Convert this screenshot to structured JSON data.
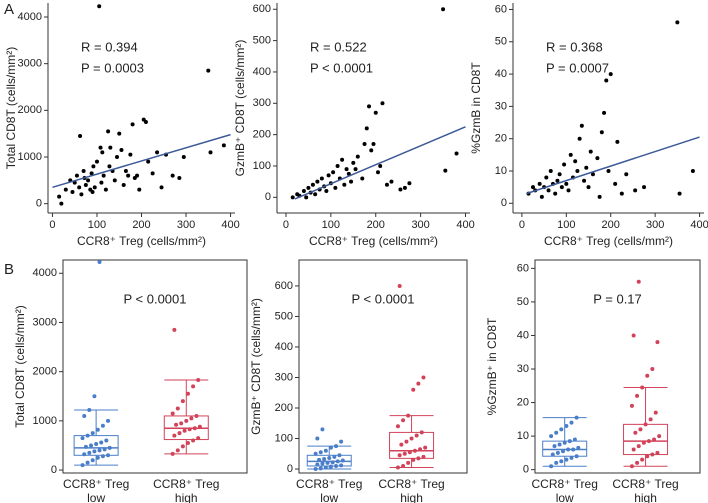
{
  "panel_labels": [
    "A",
    "B"
  ],
  "chart_data": [
    {
      "type": "scatter",
      "xlabel": "CCR8⁺ Treg (cells/mm²)",
      "ylabel": "Total CD8T (cells/mm²)",
      "annotations": [
        "R = 0.394",
        "P = 0.0003"
      ],
      "xlim": [
        -10,
        410
      ],
      "ylim": [
        -200,
        4300
      ],
      "xticks": [
        0,
        100,
        200,
        300,
        400
      ],
      "yticks": [
        0,
        1000,
        2000,
        3000,
        4000
      ],
      "color": "#000000",
      "trend": {
        "color": "#3d5a98",
        "x": [
          0,
          400
        ],
        "y": [
          350,
          1480
        ]
      },
      "x": [
        15,
        20,
        30,
        40,
        45,
        50,
        55,
        60,
        62,
        65,
        70,
        72,
        75,
        80,
        85,
        88,
        90,
        92,
        95,
        100,
        105,
        108,
        110,
        112,
        115,
        120,
        125,
        128,
        130,
        135,
        140,
        145,
        150,
        155,
        160,
        165,
        170,
        175,
        180,
        185,
        190,
        195,
        205,
        210,
        215,
        225,
        235,
        245,
        255,
        270,
        285,
        295,
        350,
        355,
        385
      ],
      "y": [
        150,
        0,
        300,
        500,
        250,
        450,
        600,
        350,
        1450,
        200,
        700,
        550,
        400,
        500,
        300,
        650,
        250,
        800,
        350,
        900,
        4230,
        1200,
        450,
        1100,
        600,
        300,
        1550,
        800,
        1200,
        700,
        500,
        1000,
        1500,
        1150,
        400,
        700,
        600,
        1050,
        1700,
        550,
        600,
        300,
        1800,
        1750,
        900,
        650,
        1100,
        350,
        1050,
        600,
        550,
        1000,
        2850,
        1100,
        1250
      ]
    },
    {
      "type": "scatter",
      "xlabel": "CCR8⁺ Treg (cells/mm²)",
      "ylabel": "GzmB⁺ CD8T (cells/mm²)",
      "annotations": [
        "R = 0.522",
        "P < 0.0001"
      ],
      "xlim": [
        -20,
        410
      ],
      "ylim": [
        -50,
        620
      ],
      "xticks": [
        0,
        100,
        200,
        300,
        400
      ],
      "yticks": [
        0,
        100,
        200,
        300,
        400,
        500,
        600
      ],
      "color": "#000000",
      "trend": {
        "color": "#3d5a98",
        "x": [
          20,
          400
        ],
        "y": [
          -5,
          225
        ]
      },
      "x": [
        15,
        25,
        30,
        40,
        45,
        50,
        55,
        60,
        65,
        70,
        75,
        80,
        85,
        90,
        95,
        100,
        105,
        110,
        115,
        120,
        125,
        130,
        135,
        140,
        145,
        150,
        155,
        160,
        170,
        175,
        180,
        185,
        190,
        195,
        200,
        205,
        210,
        215,
        225,
        235,
        255,
        265,
        275,
        350,
        355,
        380
      ],
      "y": [
        0,
        10,
        5,
        20,
        0,
        30,
        15,
        40,
        10,
        50,
        25,
        60,
        35,
        20,
        70,
        45,
        80,
        30,
        100,
        60,
        120,
        40,
        90,
        75,
        50,
        110,
        90,
        130,
        60,
        170,
        220,
        290,
        150,
        170,
        270,
        80,
        100,
        300,
        40,
        50,
        25,
        30,
        45,
        600,
        85,
        140
      ]
    },
    {
      "type": "scatter",
      "xlabel": "CCR8⁺ Treg (cells/mm²)",
      "ylabel": "%GzmB in CD8T",
      "annotations": [
        "R = 0.368",
        "P = 0.0007"
      ],
      "xlim": [
        -20,
        410
      ],
      "ylim": [
        -3,
        62
      ],
      "xticks": [
        0,
        100,
        200,
        300,
        400
      ],
      "yticks": [
        0,
        10,
        20,
        30,
        40,
        50,
        60
      ],
      "color": "#000000",
      "trend": {
        "color": "#3d5a98",
        "x": [
          10,
          400
        ],
        "y": [
          3,
          20.5
        ]
      },
      "x": [
        15,
        25,
        30,
        40,
        45,
        50,
        55,
        60,
        65,
        70,
        75,
        80,
        85,
        90,
        95,
        100,
        105,
        110,
        115,
        120,
        125,
        130,
        135,
        140,
        145,
        150,
        155,
        160,
        170,
        175,
        180,
        185,
        190,
        195,
        200,
        210,
        215,
        225,
        235,
        255,
        275,
        350,
        355,
        385
      ],
      "y": [
        3,
        5,
        4,
        6,
        2,
        5,
        8,
        4,
        10,
        6,
        3,
        7,
        9,
        5,
        12,
        6,
        4,
        15,
        8,
        13,
        10,
        20,
        24,
        7,
        11,
        5,
        16,
        9,
        14,
        2,
        22,
        28,
        38,
        10,
        40,
        6,
        19,
        3,
        9,
        4,
        5,
        56,
        3,
        10
      ]
    },
    {
      "type": "box",
      "ylabel": "Total CD8T (cells/mm²)",
      "annotations": [
        "P < 0.0001"
      ],
      "ylim": [
        -60,
        4270
      ],
      "yticks": [
        0,
        1000,
        2000,
        3000,
        4000
      ],
      "categories": [
        [
          "CCR8⁺ Treg",
          "low"
        ],
        [
          "CCR8⁺ Treg",
          "high"
        ]
      ],
      "boxes": [
        {
          "color": "#4a7ec9",
          "min": 100,
          "q1": 300,
          "median": 450,
          "q3": 700,
          "max": 1220,
          "points": [
            100,
            150,
            200,
            250,
            280,
            300,
            320,
            350,
            380,
            400,
            420,
            450,
            470,
            500,
            530,
            560,
            600,
            650,
            700,
            750,
            820,
            900,
            1000,
            1100,
            1220,
            1500,
            4230
          ]
        },
        {
          "color": "#d2435a",
          "min": 330,
          "q1": 620,
          "median": 850,
          "q3": 1100,
          "max": 1830,
          "points": [
            330,
            400,
            480,
            550,
            600,
            650,
            700,
            750,
            800,
            830,
            850,
            880,
            920,
            950,
            1000,
            1050,
            1100,
            1150,
            1250,
            1400,
            1550,
            1700,
            1830,
            2850
          ]
        }
      ]
    },
    {
      "type": "box",
      "ylabel": "GzmB⁺ CD8T (cells/mm²)",
      "annotations": [
        "P < 0.0001"
      ],
      "ylim": [
        -13,
        685
      ],
      "yticks": [
        0,
        100,
        200,
        300,
        400,
        500,
        600
      ],
      "categories": [
        [
          "CCR8⁺ Treg",
          "low"
        ],
        [
          "CCR8⁺ Treg",
          "high"
        ]
      ],
      "boxes": [
        {
          "color": "#4a7ec9",
          "min": 0,
          "q1": 10,
          "median": 25,
          "q3": 45,
          "max": 75,
          "points": [
            0,
            2,
            5,
            8,
            10,
            12,
            15,
            18,
            20,
            22,
            25,
            28,
            30,
            33,
            36,
            40,
            45,
            50,
            55,
            60,
            70,
            75,
            90,
            100,
            130
          ]
        },
        {
          "color": "#d2435a",
          "min": 5,
          "q1": 35,
          "median": 60,
          "q3": 120,
          "max": 175,
          "points": [
            5,
            10,
            20,
            30,
            35,
            40,
            45,
            50,
            55,
            60,
            65,
            70,
            80,
            90,
            100,
            110,
            120,
            140,
            160,
            175,
            260,
            280,
            300,
            600
          ]
        }
      ]
    },
    {
      "type": "box",
      "ylabel": "%GzmB⁺ in CD8T",
      "annotations": [
        "P = 0.17"
      ],
      "ylim": [
        -1,
        62.5
      ],
      "yticks": [
        0,
        10,
        20,
        30,
        40,
        50,
        60
      ],
      "categories": [
        [
          "CCR8⁺ Treg",
          "low"
        ],
        [
          "CCR8⁺ Treg",
          "high"
        ]
      ],
      "boxes": [
        {
          "color": "#4a7ec9",
          "min": 1,
          "q1": 4,
          "median": 6,
          "q3": 8.5,
          "max": 15.5,
          "points": [
            1,
            2,
            2.5,
            3,
            3.5,
            4,
            4.5,
            5,
            5.5,
            6,
            6,
            6.5,
            7,
            7.5,
            8,
            8.5,
            9,
            10,
            11,
            12,
            13,
            14,
            15.5
          ]
        },
        {
          "color": "#d2435a",
          "min": 1,
          "q1": 4.5,
          "median": 8.5,
          "q3": 13.5,
          "max": 24.5,
          "points": [
            1,
            2,
            3,
            4,
            4.5,
            5,
            6,
            7,
            8,
            8.5,
            9,
            10,
            11,
            12,
            13.5,
            15,
            17,
            19,
            22,
            24.5,
            28,
            30,
            38,
            40,
            56
          ]
        }
      ]
    }
  ]
}
